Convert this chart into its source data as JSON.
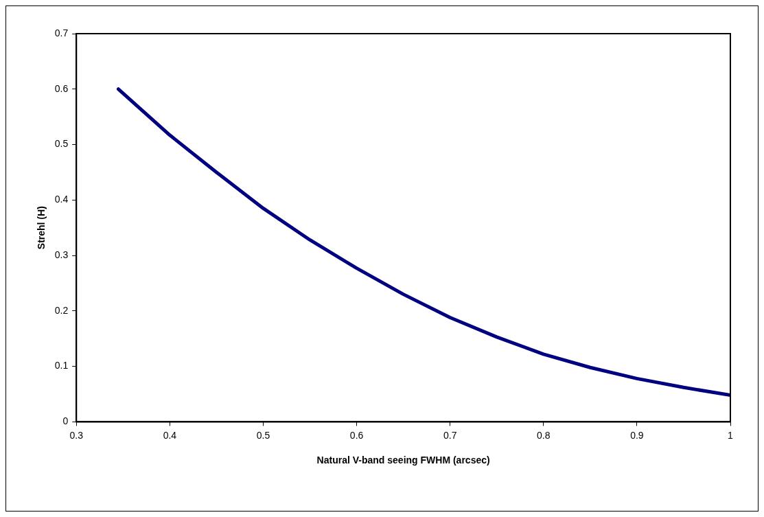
{
  "chart_data": {
    "type": "line",
    "xlabel": "Natural V-band seeing FWHM (arcsec)",
    "ylabel": "Strehl (H)",
    "x": [
      0.345,
      0.4,
      0.45,
      0.5,
      0.55,
      0.6,
      0.65,
      0.7,
      0.75,
      0.8,
      0.85,
      0.9,
      0.95,
      1.0
    ],
    "series": [
      {
        "color": "#000080",
        "values": [
          0.6,
          0.517,
          0.45,
          0.385,
          0.328,
          0.277,
          0.23,
          0.188,
          0.153,
          0.122,
          0.098,
          0.078,
          0.062,
          0.048
        ]
      }
    ],
    "xlim": [
      0.3,
      1
    ],
    "xticks": [
      0.3,
      0.4,
      0.5,
      0.6,
      0.7,
      0.8,
      0.9,
      1
    ],
    "ylim": [
      0,
      0.7
    ],
    "yticks": [
      0,
      0.1,
      0.2,
      0.3,
      0.4,
      0.5,
      0.6,
      0.7
    ],
    "grid": false,
    "legend": false,
    "marker": "none",
    "line_style": "solid"
  }
}
